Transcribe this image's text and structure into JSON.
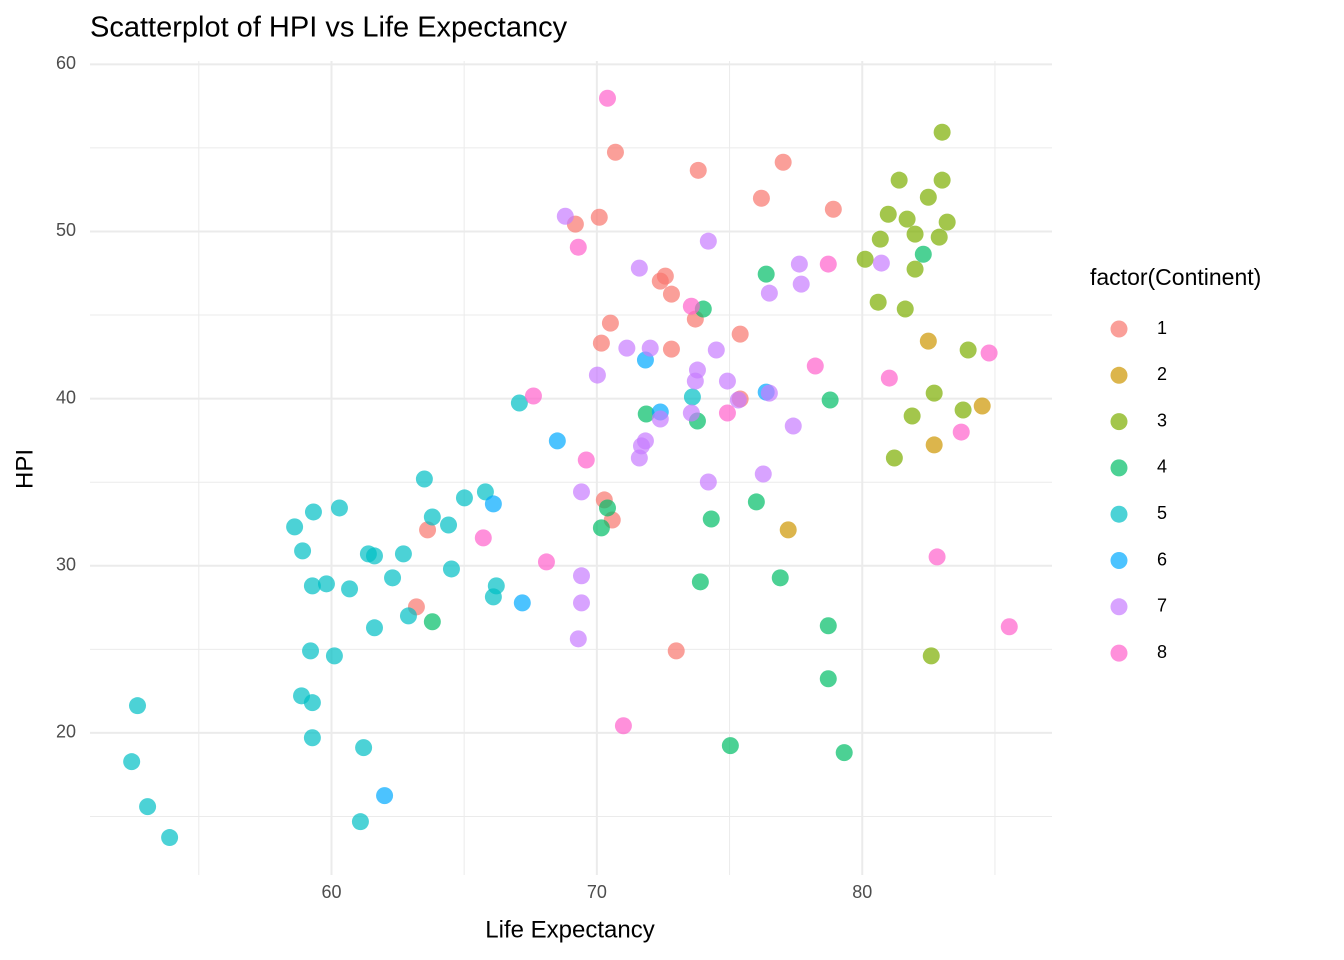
{
  "chart_data": {
    "type": "scatter",
    "title": "Scatterplot of HPI vs Life Expectancy",
    "x_label": "Life Expectancy",
    "y_label": "HPI",
    "legend_title": "factor(Continent)",
    "legend": "right",
    "grid": true,
    "xlim": [
      50.9,
      87.15
    ],
    "xticks": [
      60,
      70,
      80
    ],
    "ylim": [
      11.5,
      60.2
    ],
    "yticks": [
      20,
      30,
      40,
      50,
      60
    ],
    "series": [
      {
        "name": "1",
        "color": "#F8766D",
        "x": [
          70.7,
          77.02,
          73.82,
          76.2,
          78.91,
          70.09,
          69.19,
          72.58,
          72.39,
          72.81,
          70.51,
          73.71,
          75.4,
          70.17,
          72.81,
          75.4,
          70.28,
          70.58,
          63.62,
          63.2,
          72.99
        ],
        "values": [
          54.74,
          54.14,
          53.66,
          51.99,
          51.33,
          50.85,
          50.44,
          47.33,
          47.03,
          46.25,
          44.52,
          44.76,
          43.86,
          43.32,
          42.96,
          39.98,
          33.94,
          32.74,
          32.15,
          27.54,
          24.91
        ]
      },
      {
        "name": "2",
        "color": "#CD9600",
        "x": [
          82.49,
          84.52,
          82.71,
          77.21
        ],
        "values": [
          43.44,
          39.56,
          37.23,
          32.15
        ]
      },
      {
        "name": "3",
        "color": "#7CAE00",
        "x": [
          83.01,
          81.39,
          83.01,
          82.49,
          80.98,
          81.69,
          83.2,
          81.99,
          82.9,
          80.68,
          80.11,
          81.99,
          80.6,
          81.62,
          83.99,
          82.71,
          83.8,
          81.88,
          81.21,
          82.6
        ],
        "values": [
          55.94,
          53.07,
          53.07,
          52.05,
          51.03,
          50.74,
          50.56,
          49.84,
          49.66,
          49.54,
          48.34,
          47.75,
          45.77,
          45.36,
          42.91,
          40.33,
          39.32,
          38.96,
          36.45,
          24.61
        ]
      },
      {
        "name": "4",
        "color": "#00BE67",
        "x": [
          76.38,
          82.3,
          74.01,
          71.86,
          73.79,
          78.79,
          76.01,
          70.4,
          70.17,
          74.31,
          63.8,
          73.9,
          76.91,
          78.72,
          78.72,
          75.03,
          79.32
        ],
        "values": [
          47.45,
          48.64,
          45.36,
          39.08,
          38.66,
          39.92,
          33.82,
          33.46,
          32.27,
          32.8,
          26.65,
          29.04,
          29.28,
          26.41,
          23.24,
          19.24,
          18.82
        ]
      },
      {
        "name": "5",
        "color": "#00BFC4",
        "x": [
          67.08,
          73.6,
          63.5,
          65.8,
          65.01,
          60.3,
          59.32,
          63.8,
          64.41,
          58.61,
          58.91,
          61.39,
          61.62,
          62.71,
          64.52,
          62.3,
          66.21,
          59.81,
          59.28,
          60.68,
          66.1,
          62.9,
          61.62,
          59.21,
          60.11,
          58.87,
          59.28,
          52.69,
          59.28,
          61.21,
          52.47,
          53.07,
          61.09,
          53.9
        ],
        "values": [
          39.74,
          40.1,
          35.19,
          34.42,
          34.06,
          33.46,
          33.22,
          32.92,
          32.44,
          32.33,
          30.89,
          30.71,
          30.59,
          30.71,
          29.81,
          29.28,
          28.8,
          28.92,
          28.8,
          28.62,
          28.14,
          27.0,
          26.29,
          24.91,
          24.61,
          22.22,
          21.81,
          21.63,
          19.71,
          19.12,
          18.28,
          15.59,
          14.69,
          13.74
        ]
      },
      {
        "name": "6",
        "color": "#00A9FF",
        "x": [
          71.83,
          76.38,
          72.39,
          68.51,
          66.1,
          67.19,
          62.0
        ],
        "values": [
          42.31,
          40.39,
          39.2,
          37.47,
          33.7,
          27.78,
          16.25
        ]
      },
      {
        "name": "7",
        "color": "#C77CFF",
        "x": [
          68.81,
          74.2,
          71.6,
          77.63,
          80.72,
          77.7,
          76.5,
          71.13,
          72.01,
          74.5,
          70.02,
          73.79,
          73.71,
          74.92,
          75.33,
          76.5,
          73.56,
          72.39,
          77.4,
          71.83,
          71.68,
          71.6,
          69.42,
          76.27,
          74.2,
          69.42,
          69.42,
          69.3
        ],
        "values": [
          50.91,
          49.42,
          47.81,
          48.05,
          48.11,
          46.85,
          46.31,
          43.02,
          43.02,
          42.91,
          41.41,
          41.71,
          41.05,
          41.05,
          39.92,
          40.33,
          39.14,
          38.78,
          38.36,
          37.47,
          37.17,
          36.45,
          34.42,
          35.49,
          35.01,
          29.4,
          27.78,
          25.63
        ]
      },
      {
        "name": "8",
        "color": "#FF61CC",
        "x": [
          70.4,
          69.3,
          73.56,
          78.72,
          84.78,
          78.23,
          81.02,
          67.61,
          74.92,
          83.73,
          69.6,
          65.72,
          68.1,
          82.82,
          85.54,
          71.0
        ],
        "values": [
          57.97,
          49.06,
          45.53,
          48.05,
          42.73,
          41.95,
          41.23,
          40.16,
          39.14,
          38.0,
          36.33,
          31.67,
          30.23,
          30.53,
          26.35,
          20.43
        ]
      }
    ]
  }
}
